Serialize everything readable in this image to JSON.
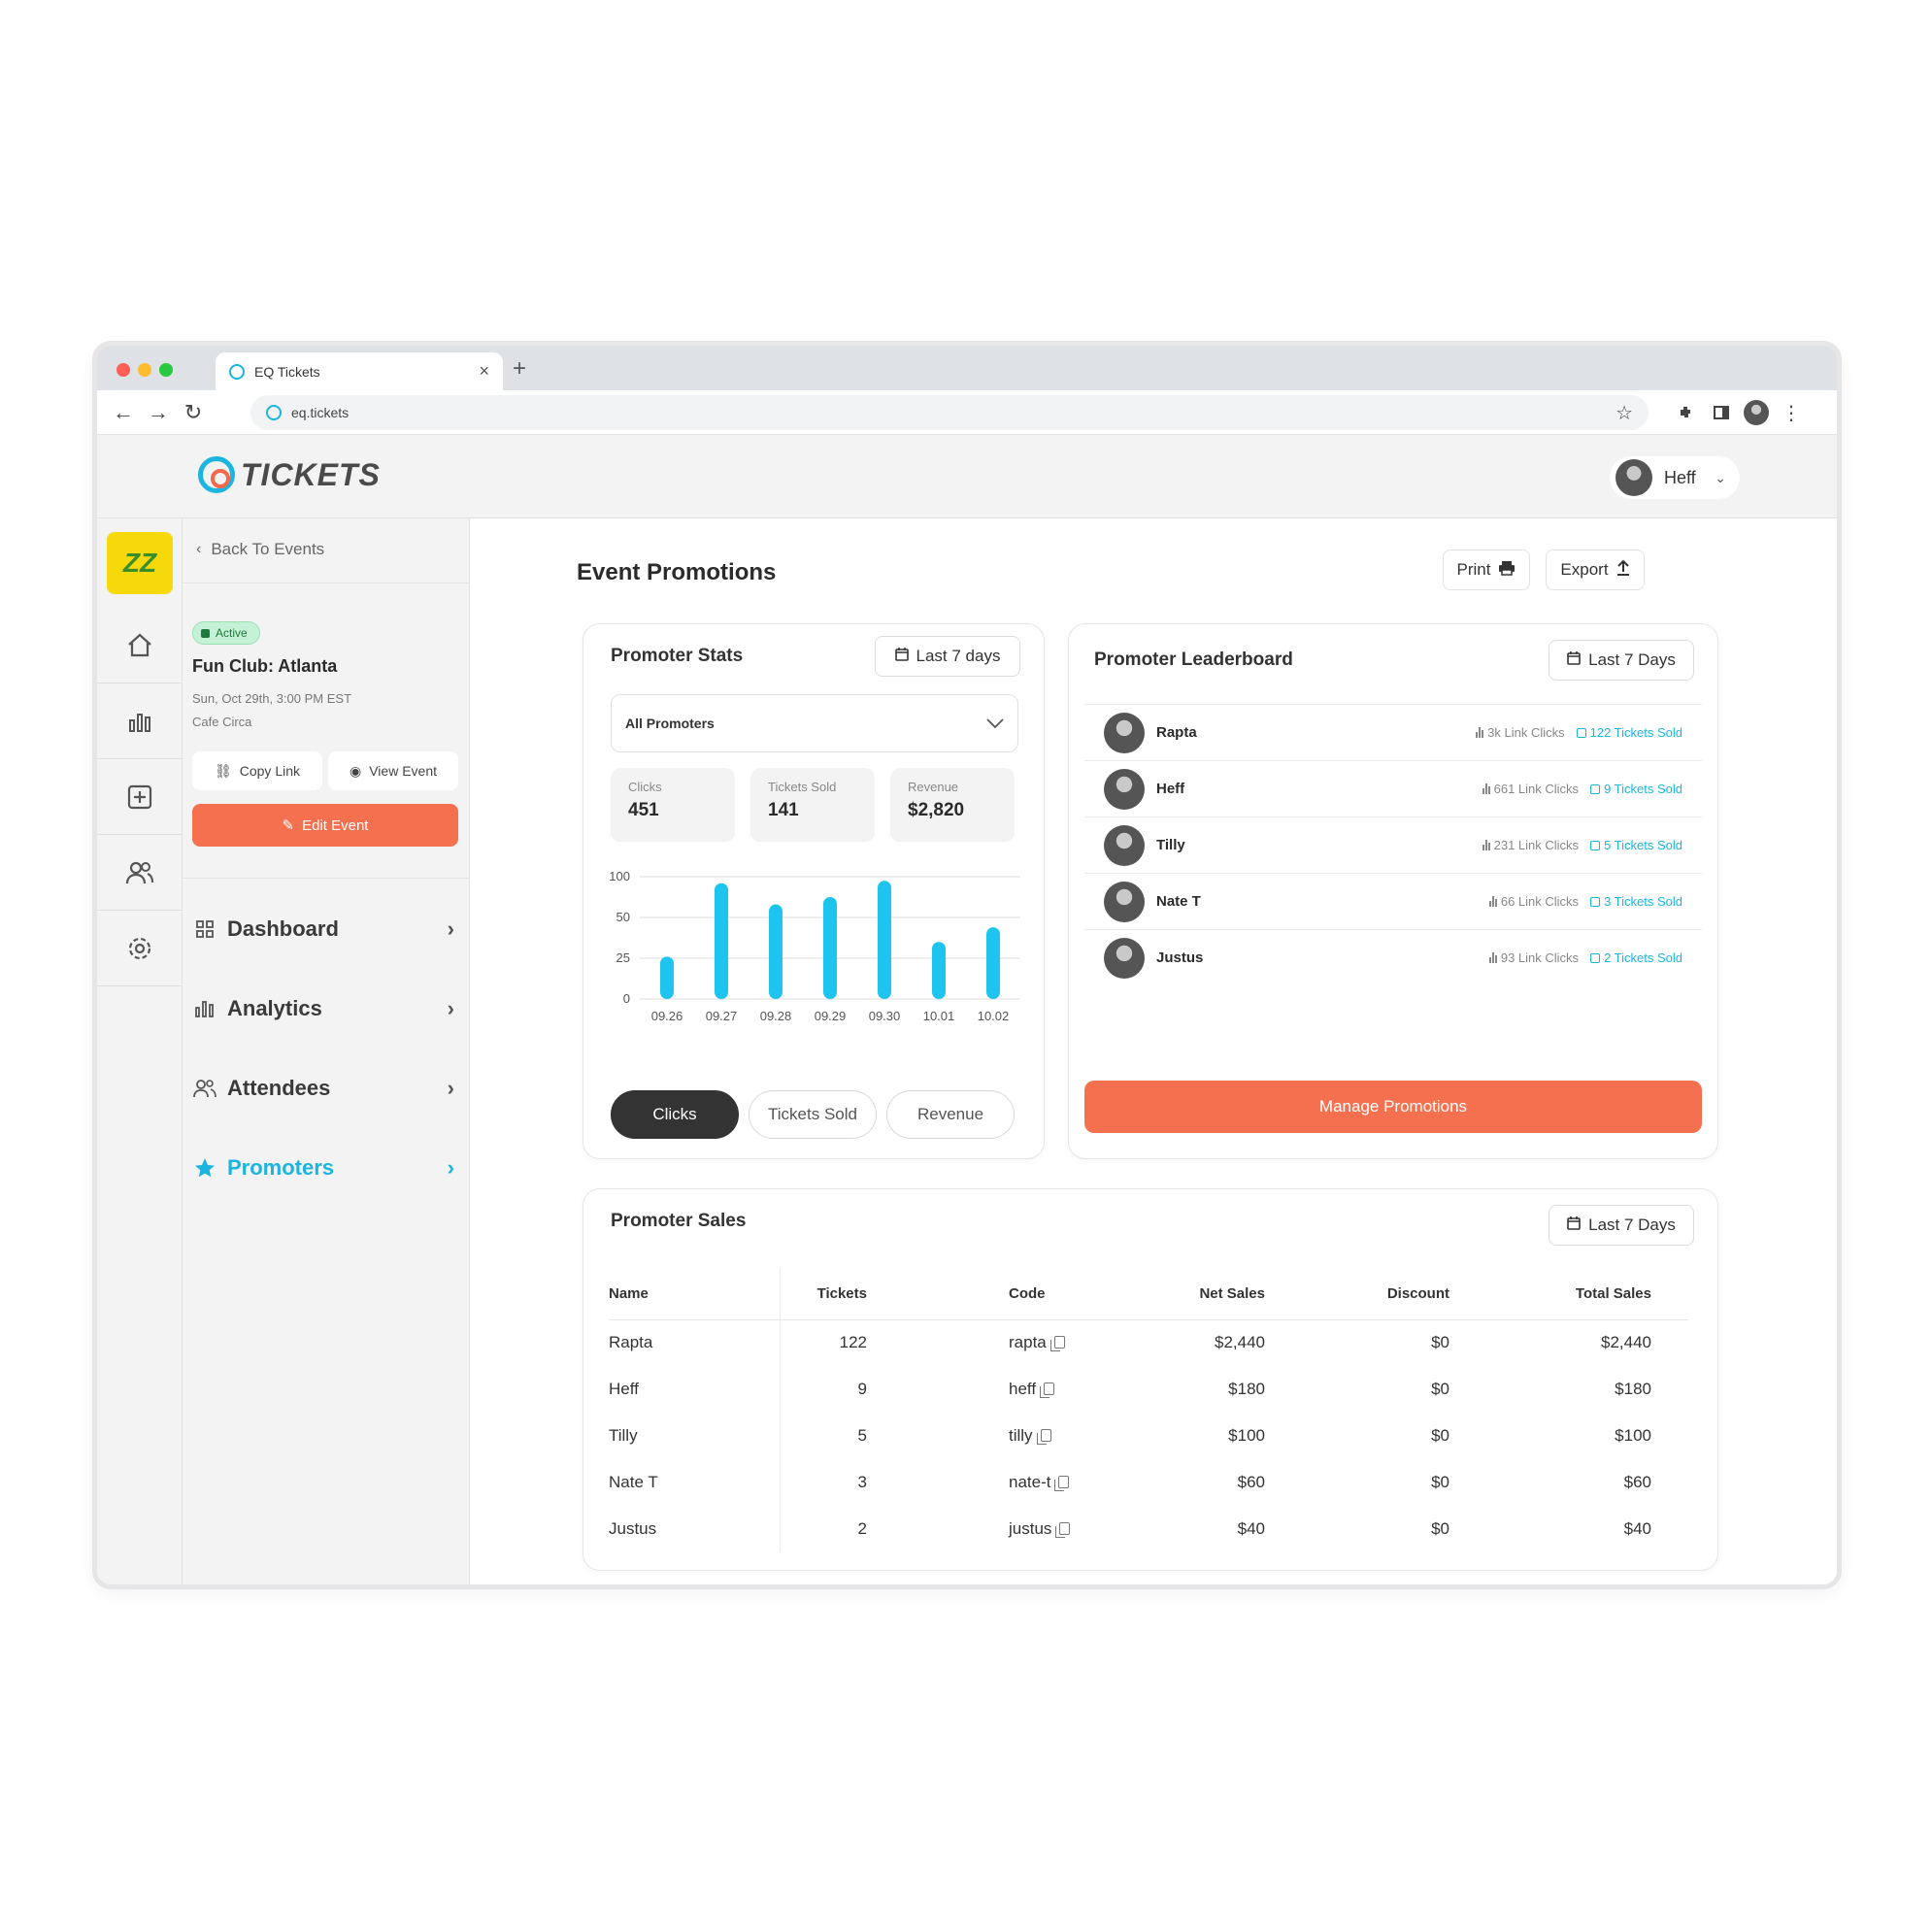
{
  "browser": {
    "tab_title": "EQ Tickets",
    "tab_close": "×",
    "new_tab": "+",
    "url": "eq.tickets"
  },
  "header": {
    "logo_text": "TICKETS",
    "user_name": "Heff"
  },
  "rail": {
    "logo_mark": "ZZ",
    "items": [
      "home-icon",
      "bar-chart-icon",
      "add-square-icon",
      "users-icon",
      "gear-icon"
    ]
  },
  "sidebar": {
    "back_label": "Back To Events",
    "status": "Active",
    "event_title": "Fun Club: Atlanta",
    "event_date": "Sun, Oct 29th, 3:00 PM EST",
    "event_venue": "Cafe Circa",
    "copy_link": "Copy Link",
    "view_event": "View Event",
    "edit_event": "Edit Event",
    "menu": [
      {
        "label": "Dashboard",
        "icon": "grid-icon"
      },
      {
        "label": "Analytics",
        "icon": "bar-chart-icon"
      },
      {
        "label": "Attendees",
        "icon": "users-icon"
      },
      {
        "label": "Promoters",
        "icon": "star-icon",
        "active": true
      }
    ]
  },
  "main": {
    "title": "Event Promotions",
    "print": "Print",
    "export": "Export"
  },
  "promoter_stats": {
    "title": "Promoter Stats",
    "range": "Last 7 days",
    "filter": "All Promoters",
    "stats": [
      {
        "label": "Clicks",
        "value": "451"
      },
      {
        "label": "Tickets Sold",
        "value": "141"
      },
      {
        "label": "Revenue",
        "value": "$2,820"
      }
    ],
    "toggles": [
      "Clicks",
      "Tickets Sold",
      "Revenue"
    ]
  },
  "chart_data": {
    "type": "bar",
    "categories": [
      "09.26",
      "09.27",
      "09.28",
      "09.29",
      "09.30",
      "10.01",
      "10.02"
    ],
    "values": [
      26,
      92,
      66,
      75,
      95,
      35,
      44
    ],
    "y_ticks": [
      "0",
      "25",
      "50",
      "100"
    ],
    "grid": true,
    "color": "#1cc4ee"
  },
  "leaderboard": {
    "title": "Promoter Leaderboard",
    "range": "Last 7 Days",
    "rows": [
      {
        "name": "Rapta",
        "clicks": "3k Link Clicks",
        "sold": "122 Tickets Sold"
      },
      {
        "name": "Heff",
        "clicks": "661 Link Clicks",
        "sold": "9 Tickets Sold"
      },
      {
        "name": "Tilly",
        "clicks": "231 Link Clicks",
        "sold": "5 Tickets Sold"
      },
      {
        "name": "Nate T",
        "clicks": "66 Link Clicks",
        "sold": "3 Tickets Sold"
      },
      {
        "name": "Justus",
        "clicks": "93 Link Clicks",
        "sold": "2 Tickets Sold"
      }
    ],
    "manage": "Manage Promotions"
  },
  "sales": {
    "title": "Promoter Sales",
    "range": "Last 7 Days",
    "columns": [
      "Name",
      "Tickets",
      "Code",
      "Net Sales",
      "Discount",
      "Total Sales"
    ],
    "rows": [
      [
        "Rapta",
        "122",
        "rapta",
        "$2,440",
        "$0",
        "$2,440"
      ],
      [
        "Heff",
        "9",
        "heff",
        "$180",
        "$0",
        "$180"
      ],
      [
        "Tilly",
        "5",
        "tilly",
        "$100",
        "$0",
        "$100"
      ],
      [
        "Nate T",
        "3",
        "nate-t",
        "$60",
        "$0",
        "$60"
      ],
      [
        "Justus",
        "2",
        "justus",
        "$40",
        "$0",
        "$40"
      ]
    ]
  },
  "colors": {
    "accent": "#1cb5e0",
    "primary_action": "#f4704f",
    "active_badge": "#c5f2d6"
  }
}
